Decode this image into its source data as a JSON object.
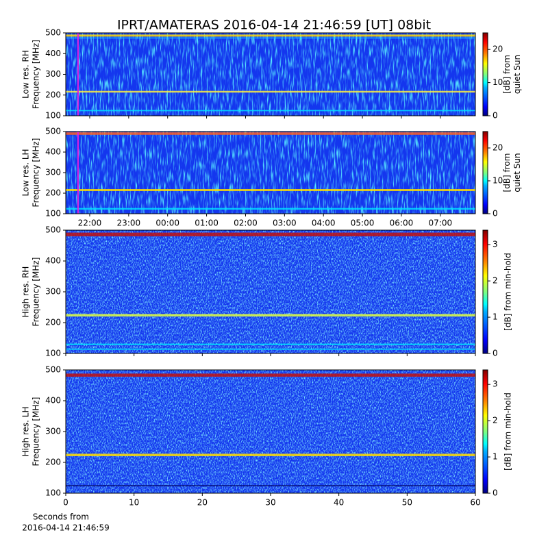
{
  "chart_data": [
    {
      "type": "heatmap",
      "title": "IPRT/AMATERAS 2016-04-14 21:46:59 [UT]   08bit",
      "ylabel": [
        "Low res. RH",
        "Frequency [MHz]"
      ],
      "ylim": [
        100,
        500
      ],
      "yticks": [
        100,
        200,
        300,
        400,
        500
      ],
      "xlim": [
        21.385,
        31.9
      ],
      "marker_x": 21.7,
      "marker_color": "#e020e0",
      "colorbar_label": [
        "[dB] from",
        "quiet Sun"
      ],
      "clim": [
        0,
        25
      ],
      "cticks": [
        0,
        10,
        20
      ]
    },
    {
      "type": "heatmap",
      "ylabel": [
        "Low res. LH",
        "Frequency [MHz]"
      ],
      "ylim": [
        100,
        500
      ],
      "yticks": [
        100,
        200,
        300,
        400,
        500
      ],
      "xlim": [
        21.385,
        31.9
      ],
      "marker_x": 21.7,
      "marker_color": "#e020e0",
      "xticks": [
        {
          "value": 22,
          "label": "22:00"
        },
        {
          "value": 23,
          "label": "23:00"
        },
        {
          "value": 24,
          "label": "00:00"
        },
        {
          "value": 25,
          "label": "01:00"
        },
        {
          "value": 26,
          "label": "02:00"
        },
        {
          "value": 27,
          "label": "03:00"
        },
        {
          "value": 28,
          "label": "04:00"
        },
        {
          "value": 29,
          "label": "05:00"
        },
        {
          "value": 30,
          "label": "06:00"
        },
        {
          "value": 31,
          "label": "07:00"
        }
      ],
      "colorbar_label": [
        "[dB] from",
        "quiet Sun"
      ],
      "clim": [
        0,
        25
      ],
      "cticks": [
        0,
        10,
        20
      ]
    },
    {
      "type": "heatmap",
      "ylabel": [
        "High res. RH",
        "Frequency [MHz]"
      ],
      "ylim": [
        100,
        500
      ],
      "yticks": [
        100,
        200,
        300,
        400,
        500
      ],
      "xlim": [
        0,
        60
      ],
      "colorbar_label": [
        "[dB] from min-hold"
      ],
      "clim": [
        0,
        3.4
      ],
      "cticks": [
        0,
        1,
        2,
        3
      ]
    },
    {
      "type": "heatmap",
      "ylabel": [
        "High res. LH",
        "Frequency [MHz]"
      ],
      "ylim": [
        100,
        500
      ],
      "yticks": [
        100,
        200,
        300,
        400,
        500
      ],
      "xlim": [
        0,
        60
      ],
      "xticks": [
        0,
        10,
        20,
        30,
        40,
        50,
        60
      ],
      "xlabel": [
        "Seconds from",
        "2016-04-14 21:46:59"
      ],
      "colorbar_label": [
        "[dB] from min-hold"
      ],
      "clim": [
        0,
        3.4
      ],
      "cticks": [
        0,
        1,
        2,
        3
      ]
    }
  ]
}
